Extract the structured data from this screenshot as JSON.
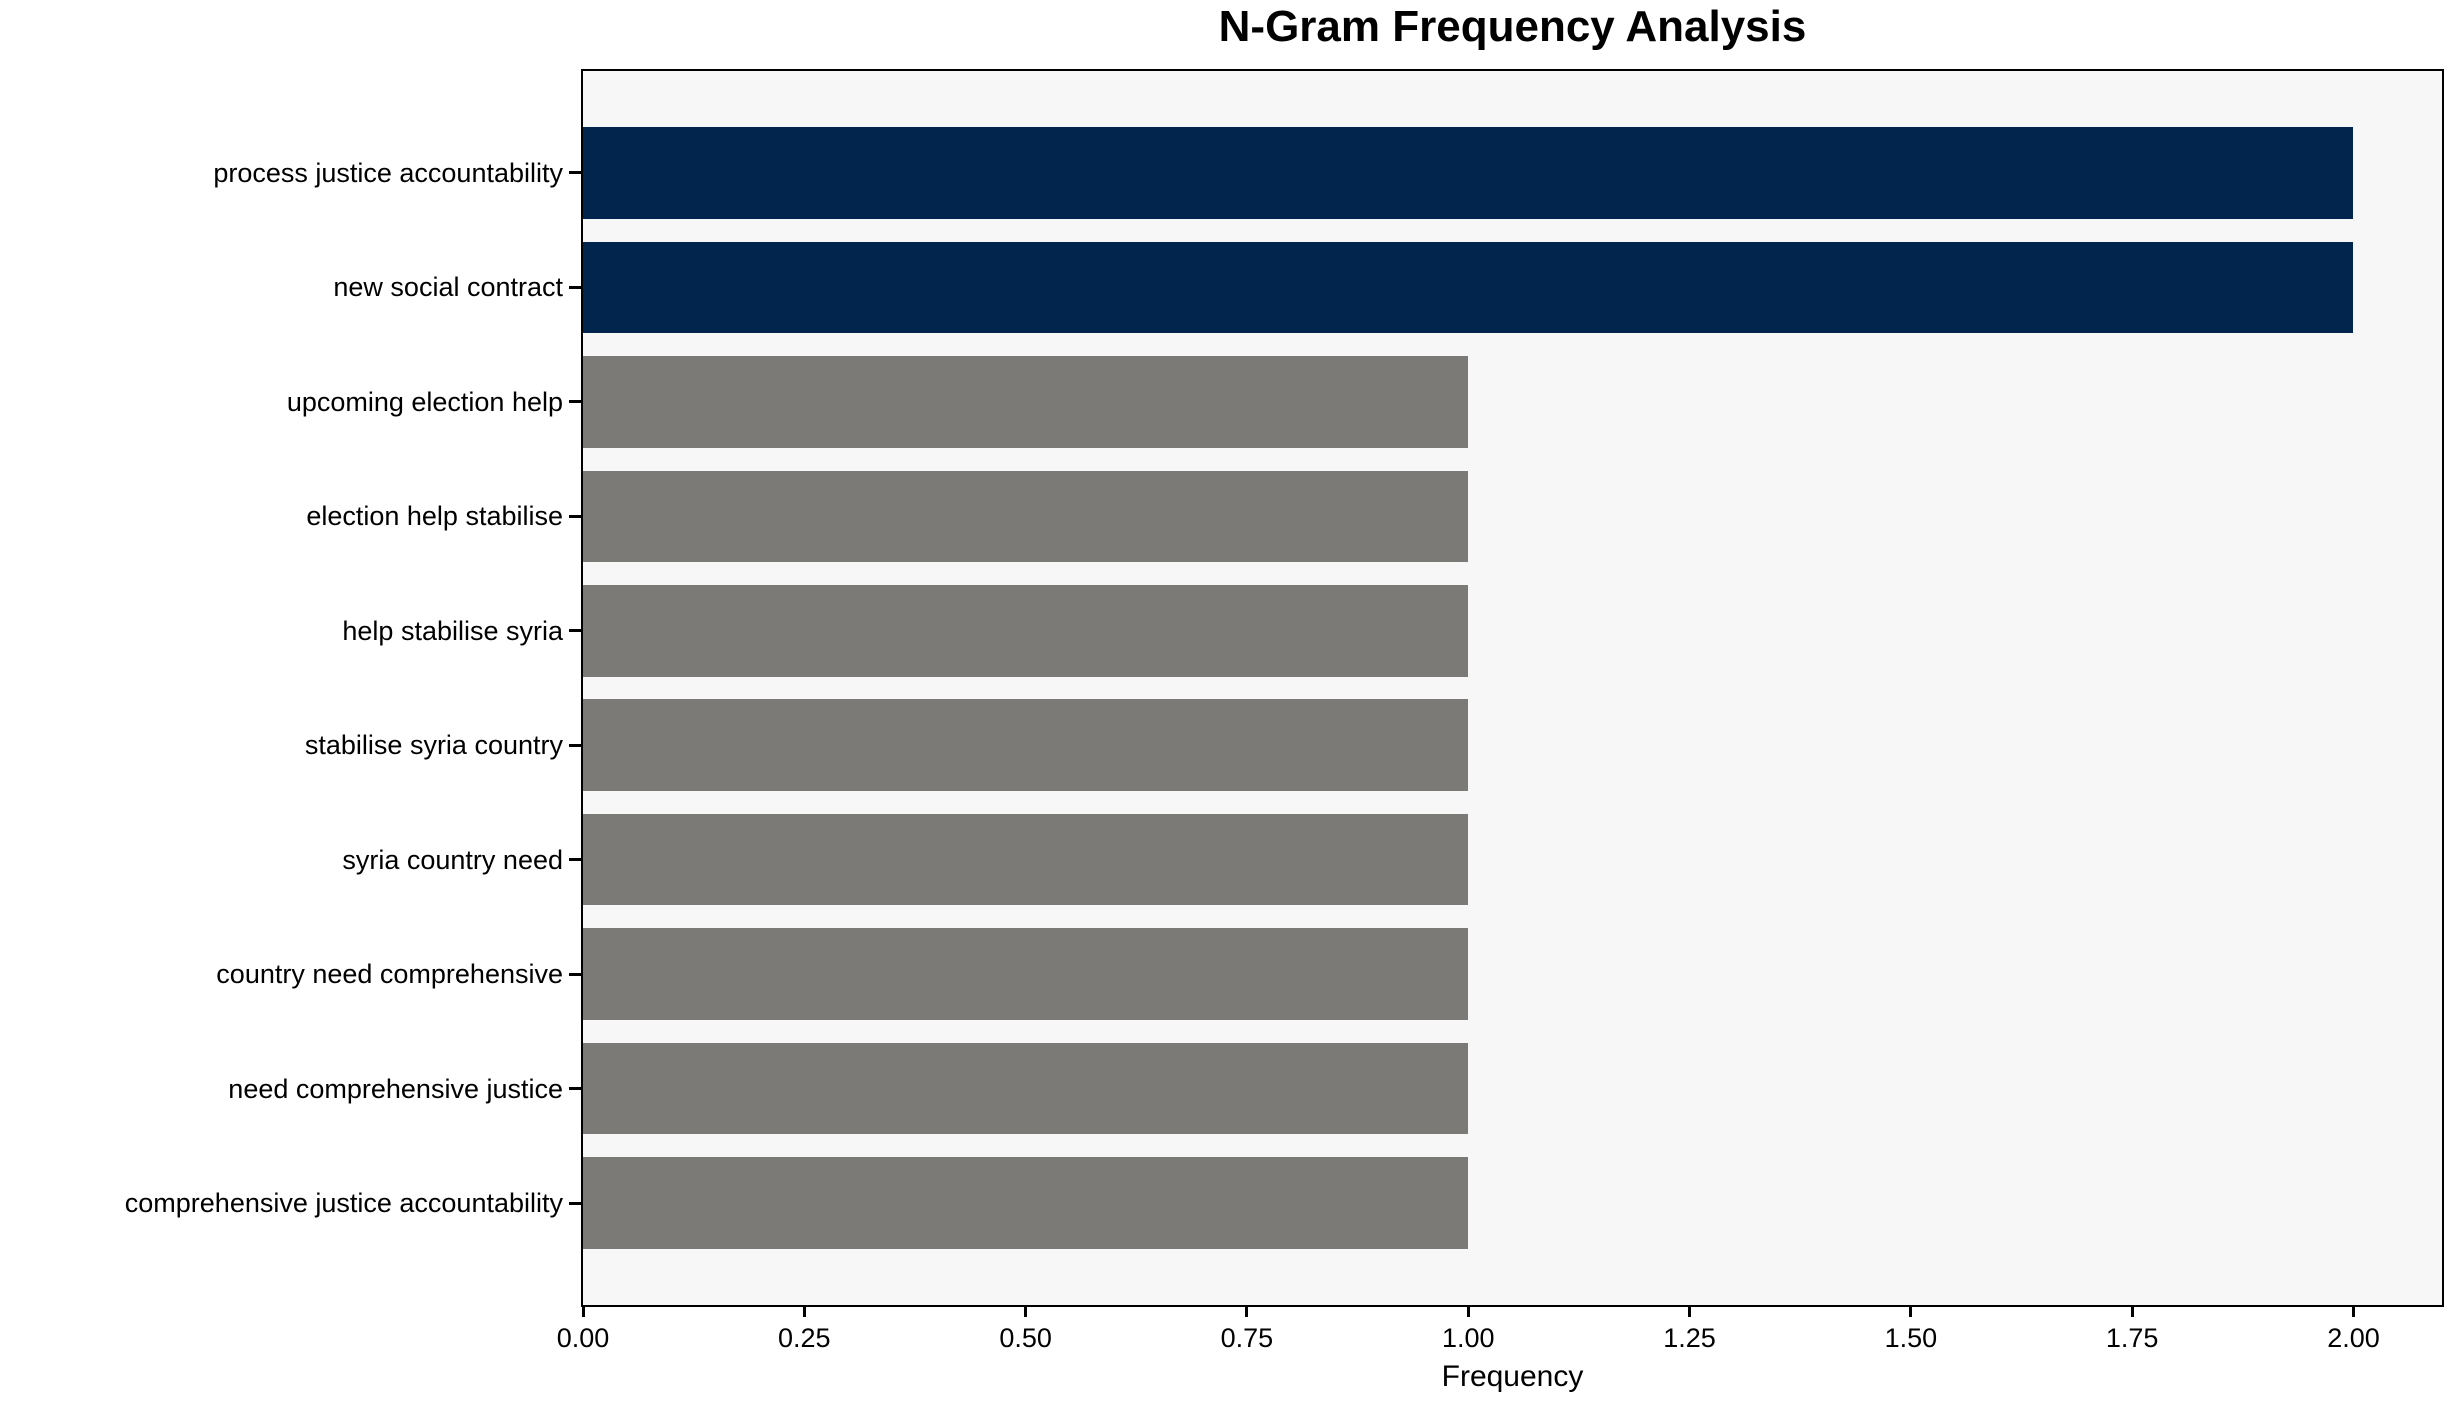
{
  "chart_data": {
    "type": "bar",
    "orientation": "horizontal",
    "title": "N-Gram Frequency Analysis",
    "xlabel": "Frequency",
    "ylabel": "",
    "categories": [
      "process justice accountability",
      "new social contract",
      "upcoming election help",
      "election help stabilise",
      "help stabilise syria",
      "stabilise syria country",
      "syria country need",
      "country need comprehensive",
      "need comprehensive justice",
      "comprehensive justice accountability"
    ],
    "values": [
      2,
      2,
      1,
      1,
      1,
      1,
      1,
      1,
      1,
      1
    ],
    "bar_colors": [
      "#02254e",
      "#02254e",
      "#7b7a76",
      "#7b7a76",
      "#7b7a76",
      "#7b7a76",
      "#7b7a76",
      "#7b7a76",
      "#7b7a76",
      "#7b7a76"
    ],
    "xlim": [
      0,
      2.1
    ],
    "xticks": [
      0,
      0.25,
      0.5,
      0.75,
      1.0,
      1.25,
      1.5,
      1.75,
      2.0
    ],
    "xtick_labels": [
      "0.00",
      "0.25",
      "0.50",
      "0.75",
      "1.00",
      "1.25",
      "1.50",
      "1.75",
      "2.00"
    ],
    "grid": false,
    "legend": "none",
    "bar_height_fraction": 0.8,
    "colors": {
      "highlight_bar": "#02254e",
      "regular_bar": "#7b7a76",
      "plot_background": "#f7f7f7",
      "figure_background": "#ffffff",
      "axis": "#000000",
      "text": "#000000"
    }
  }
}
